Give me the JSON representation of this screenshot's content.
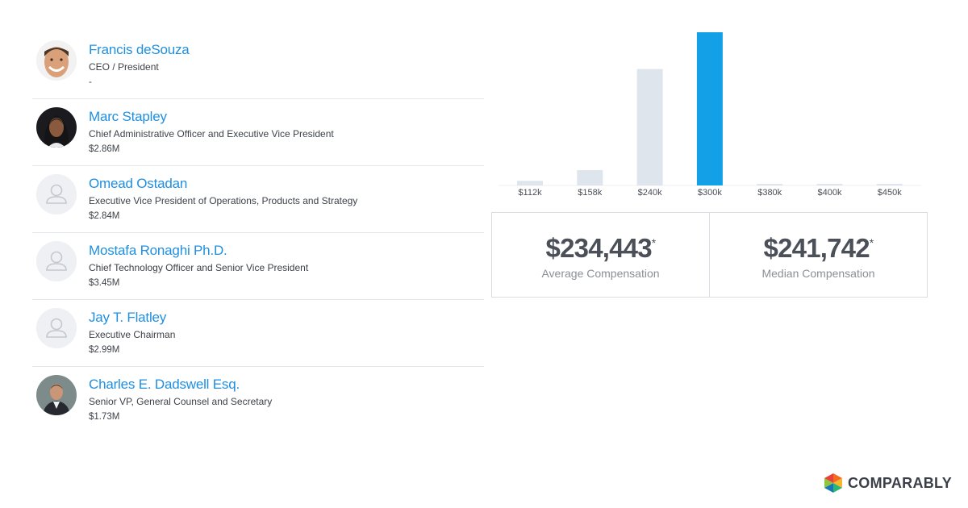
{
  "people": [
    {
      "name": "Francis deSouza",
      "title": "CEO / President",
      "comp": "-",
      "avatar": "photo-man-smiling"
    },
    {
      "name": "Marc Stapley",
      "title": "Chief Administrative Officer and Executive Vice President",
      "comp": "$2.86M",
      "avatar": "photo-woman"
    },
    {
      "name": "Omead Ostadan",
      "title": "Executive Vice President of Operations, Products and Strategy",
      "comp": "$2.84M",
      "avatar": "placeholder-person-icon"
    },
    {
      "name": "Mostafa Ronaghi Ph.D.",
      "title": "Chief Technology Officer and Senior Vice President",
      "comp": "$3.45M",
      "avatar": "placeholder-person-icon"
    },
    {
      "name": "Jay T. Flatley",
      "title": "Executive Chairman",
      "comp": "$2.99M",
      "avatar": "placeholder-person-icon"
    },
    {
      "name": "Charles E. Dadswell Esq.",
      "title": "Senior VP, General Counsel and Secretary",
      "comp": "$1.73M",
      "avatar": "photo-man-suit"
    }
  ],
  "chart_data": {
    "type": "bar",
    "categories": [
      "$112k",
      "$158k",
      "$240k",
      "$300k",
      "$380k",
      "$400k",
      "$450k"
    ],
    "values": [
      3,
      10,
      76,
      100,
      0.5,
      0.5,
      1
    ],
    "highlight_index": 3,
    "bar_color": "#dfe5ec",
    "highlight_color": "#14a0e6",
    "title": "",
    "xlabel": "",
    "ylabel": "",
    "ylim": [
      0,
      100
    ]
  },
  "stats": {
    "average": {
      "value": "$234,443",
      "mark": "*",
      "label": "Average Compensation"
    },
    "median": {
      "value": "$241,742",
      "mark": "*",
      "label": "Median Compensation"
    }
  },
  "brand": {
    "name": "COMPARABLY"
  }
}
